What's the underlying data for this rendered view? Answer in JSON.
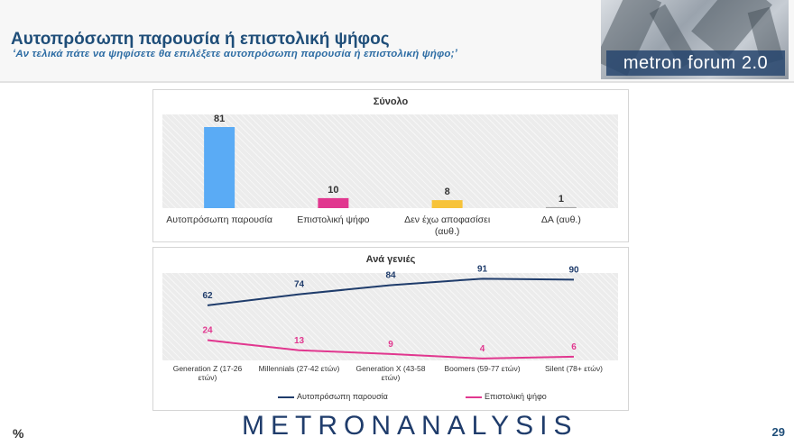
{
  "header": {
    "title": "Αυτοπρόσωπη παρουσία ή επιστολική ψήφος",
    "subtitle": "‘Αν τελικά πάτε να ψηφίσετε θα επιλέξετε αυτοπρόσωπη παρουσία ή επιστολική ψήφο;’",
    "logo": "metron forum 2.0"
  },
  "footer": {
    "brand_part1": "METRON",
    "brand_part2": "ANALYSIS",
    "page_number": "29",
    "unit": "%"
  },
  "chart_data": [
    {
      "type": "bar",
      "title": "Σύνολο",
      "categories": [
        "Αυτοπρόσωπη παρουσία",
        "Επιστολική ψήφο",
        "Δεν έχω αποφασίσει (αυθ.)",
        "ΔΑ (αυθ.)"
      ],
      "values": [
        81,
        10,
        8,
        1
      ],
      "colors": [
        "#5aabf5",
        "#e1378f",
        "#f7c33a",
        "#a6a6a6"
      ],
      "ylim": [
        0,
        90
      ]
    },
    {
      "type": "line",
      "title": "Ανά γενιές",
      "categories": [
        "Generation Z (17-26 ετών)",
        "Millennials (27-42 ετών)",
        "Generation X (43-58 ετών)",
        "Boomers (59-77 ετών)",
        "Silent (78+ ετών)"
      ],
      "series": [
        {
          "name": "Αυτοπρόσωπη παρουσία",
          "values": [
            62,
            74,
            84,
            91,
            90
          ],
          "color": "#1f3c6b"
        },
        {
          "name": "Επιστολική ψήφο",
          "values": [
            24,
            13,
            9,
            4,
            6
          ],
          "color": "#e1378f"
        }
      ],
      "ylim": [
        0,
        100
      ]
    }
  ]
}
